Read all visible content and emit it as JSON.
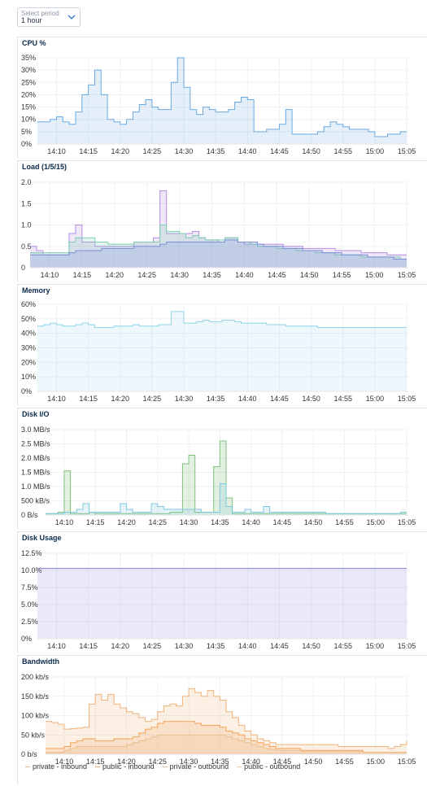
{
  "period_select": {
    "placeholder": "Select period",
    "value": "1 hour"
  },
  "x_ticks": [
    "14:10",
    "14:15",
    "14:20",
    "14:25",
    "14:30",
    "14:35",
    "14:40",
    "14:45",
    "14:50",
    "14:55",
    "15:00",
    "15:05"
  ],
  "colors": {
    "cpu": "#6aa9e0",
    "load1": "#b48ee0",
    "load5": "#7ccfb0",
    "load15": "#7a8fd9",
    "memory": "#8fd3e8",
    "disk_read": "#7fbf7a",
    "disk_write": "#7fc9e0",
    "disk_usage": "#8c86d6",
    "priv_in": "#f0b27a",
    "pub_in": "#f5a25a",
    "priv_out": "#e8c08f",
    "pub_out": "#f6c7a0"
  },
  "panels": [
    {
      "id": "cpu",
      "title": "CPU %"
    },
    {
      "id": "load",
      "title": "Load (1/5/15)"
    },
    {
      "id": "memory",
      "title": "Memory"
    },
    {
      "id": "diskio",
      "title": "Disk I/O"
    },
    {
      "id": "diskusage",
      "title": "Disk Usage"
    },
    {
      "id": "bandwidth",
      "title": "Bandwidth"
    }
  ],
  "chart_data": [
    {
      "type": "area",
      "title": "CPU %",
      "x": [
        "14:07",
        "14:08",
        "14:09",
        "14:10",
        "14:11",
        "14:12",
        "14:13",
        "14:14",
        "14:15",
        "14:16",
        "14:17",
        "14:18",
        "14:19",
        "14:20",
        "14:21",
        "14:22",
        "14:23",
        "14:24",
        "14:25",
        "14:26",
        "14:27",
        "14:28",
        "14:29",
        "14:30",
        "14:31",
        "14:32",
        "14:33",
        "14:34",
        "14:35",
        "14:36",
        "14:37",
        "14:38",
        "14:39",
        "14:40",
        "14:41",
        "14:42",
        "14:43",
        "14:44",
        "14:45",
        "14:46",
        "14:47",
        "14:48",
        "14:49",
        "14:50",
        "14:51",
        "14:52",
        "14:53",
        "14:54",
        "14:55",
        "14:56",
        "14:57",
        "14:58",
        "14:59",
        "15:00",
        "15:01",
        "15:02",
        "15:03",
        "15:04",
        "15:05"
      ],
      "series": [
        {
          "values": [
            9,
            9,
            10,
            11,
            9,
            8,
            13,
            20,
            24,
            30,
            20,
            10,
            9,
            8,
            10,
            13,
            16,
            18,
            15,
            14,
            14,
            25,
            35,
            23,
            14,
            12,
            15,
            14,
            13,
            13,
            14,
            17,
            19,
            18,
            5,
            5,
            6,
            6,
            8,
            14,
            4,
            4,
            4,
            4,
            5,
            7,
            9,
            8,
            7,
            6,
            6,
            6,
            5,
            3,
            3,
            4,
            4,
            5,
            5
          ]
        }
      ],
      "yticks": [
        "35%",
        "30%",
        "25%",
        "20%",
        "15%",
        "10%",
        "5%",
        "0%"
      ],
      "ylim": [
        0,
        35
      ]
    },
    {
      "type": "area",
      "title": "Load (1/5/15)",
      "x": [
        "14:07",
        "14:08",
        "14:09",
        "14:10",
        "14:11",
        "14:12",
        "14:13",
        "14:14",
        "14:15",
        "14:16",
        "14:17",
        "14:18",
        "14:19",
        "14:20",
        "14:21",
        "14:22",
        "14:23",
        "14:24",
        "14:25",
        "14:26",
        "14:27",
        "14:28",
        "14:29",
        "14:30",
        "14:31",
        "14:32",
        "14:33",
        "14:34",
        "14:35",
        "14:36",
        "14:37",
        "14:38",
        "14:39",
        "14:40",
        "14:41",
        "14:42",
        "14:43",
        "14:44",
        "14:45",
        "14:46",
        "14:47",
        "14:48",
        "14:49",
        "14:50",
        "14:51",
        "14:52",
        "14:53",
        "14:54",
        "14:55",
        "14:56",
        "14:57",
        "14:58",
        "14:59",
        "15:00",
        "15:01",
        "15:02",
        "15:03",
        "15:04",
        "15:05"
      ],
      "series": [
        {
          "values": [
            0.5,
            0.4,
            0.3,
            0.3,
            0.3,
            0.3,
            0.8,
            1.0,
            0.6,
            0.6,
            0.5,
            0.5,
            0.5,
            0.5,
            0.5,
            0.5,
            0.6,
            0.6,
            0.6,
            0.7,
            1.8,
            0.8,
            0.8,
            0.8,
            0.8,
            0.85,
            0.7,
            0.65,
            0.65,
            0.6,
            0.7,
            0.7,
            0.6,
            0.55,
            0.55,
            0.55,
            0.55,
            0.55,
            0.55,
            0.5,
            0.5,
            0.5,
            0.45,
            0.45,
            0.45,
            0.45,
            0.45,
            0.4,
            0.4,
            0.4,
            0.4,
            0.35,
            0.35,
            0.35,
            0.35,
            0.3,
            0.3,
            0.3,
            0.3
          ]
        },
        {
          "values": [
            0.35,
            0.35,
            0.35,
            0.35,
            0.35,
            0.35,
            0.6,
            0.7,
            0.7,
            0.7,
            0.6,
            0.6,
            0.55,
            0.55,
            0.55,
            0.55,
            0.6,
            0.6,
            0.6,
            0.6,
            1.0,
            0.85,
            0.85,
            0.8,
            0.7,
            0.75,
            0.7,
            0.65,
            0.65,
            0.65,
            0.7,
            0.7,
            0.6,
            0.6,
            0.55,
            0.5,
            0.5,
            0.5,
            0.45,
            0.45,
            0.45,
            0.4,
            0.4,
            0.4,
            0.35,
            0.35,
            0.35,
            0.3,
            0.3,
            0.3,
            0.3,
            0.25,
            0.25,
            0.25,
            0.25,
            0.25,
            0.25,
            0.2,
            0.2
          ]
        },
        {
          "values": [
            0.3,
            0.3,
            0.3,
            0.3,
            0.3,
            0.3,
            0.35,
            0.4,
            0.4,
            0.4,
            0.4,
            0.45,
            0.45,
            0.45,
            0.45,
            0.45,
            0.5,
            0.5,
            0.5,
            0.5,
            0.55,
            0.6,
            0.6,
            0.6,
            0.6,
            0.6,
            0.6,
            0.6,
            0.6,
            0.6,
            0.65,
            0.65,
            0.6,
            0.6,
            0.6,
            0.55,
            0.5,
            0.5,
            0.5,
            0.45,
            0.45,
            0.45,
            0.4,
            0.4,
            0.4,
            0.35,
            0.35,
            0.35,
            0.3,
            0.3,
            0.3,
            0.3,
            0.25,
            0.25,
            0.25,
            0.25,
            0.2,
            0.2,
            0.2
          ]
        }
      ],
      "yticks": [
        "2.0",
        "1.5",
        "1.0",
        "0.5",
        "0"
      ],
      "ylim": [
        0,
        2
      ]
    },
    {
      "type": "area",
      "title": "Memory",
      "x": [
        "14:07",
        "14:08",
        "14:09",
        "14:10",
        "14:11",
        "14:12",
        "14:13",
        "14:14",
        "14:15",
        "14:16",
        "14:17",
        "14:18",
        "14:19",
        "14:20",
        "14:21",
        "14:22",
        "14:23",
        "14:24",
        "14:25",
        "14:26",
        "14:27",
        "14:28",
        "14:29",
        "14:30",
        "14:31",
        "14:32",
        "14:33",
        "14:34",
        "14:35",
        "14:36",
        "14:37",
        "14:38",
        "14:39",
        "14:40",
        "14:41",
        "14:42",
        "14:43",
        "14:44",
        "14:45",
        "14:46",
        "14:47",
        "14:48",
        "14:49",
        "14:50",
        "14:51",
        "14:52",
        "14:53",
        "14:54",
        "14:55",
        "14:56",
        "14:57",
        "14:58",
        "14:59",
        "15:00",
        "15:01",
        "15:02",
        "15:03",
        "15:04",
        "15:05"
      ],
      "series": [
        {
          "values": [
            45,
            46,
            47,
            46,
            45,
            45,
            46,
            47,
            46,
            44,
            44,
            44,
            45,
            45,
            45,
            46,
            45,
            45,
            45,
            46,
            46,
            55,
            55,
            47,
            47,
            48,
            49,
            48,
            48,
            49,
            49,
            48,
            47,
            47,
            47,
            47,
            46,
            46,
            46,
            45,
            45,
            45,
            45,
            45,
            44,
            44,
            44,
            44,
            44,
            44,
            44,
            44,
            44,
            44,
            44,
            44,
            44,
            44,
            44
          ]
        }
      ],
      "yticks": [
        "60%",
        "50%",
        "40%",
        "30%",
        "20%",
        "10%",
        "0%"
      ],
      "ylim": [
        0,
        60
      ]
    },
    {
      "type": "area",
      "title": "Disk I/O",
      "x": [
        "14:07",
        "14:08",
        "14:09",
        "14:10",
        "14:11",
        "14:12",
        "14:13",
        "14:14",
        "14:15",
        "14:16",
        "14:17",
        "14:18",
        "14:19",
        "14:20",
        "14:21",
        "14:22",
        "14:23",
        "14:24",
        "14:25",
        "14:26",
        "14:27",
        "14:28",
        "14:29",
        "14:30",
        "14:31",
        "14:32",
        "14:33",
        "14:34",
        "14:35",
        "14:36",
        "14:37",
        "14:38",
        "14:39",
        "14:40",
        "14:41",
        "14:42",
        "14:43",
        "14:44",
        "14:45",
        "14:46",
        "14:47",
        "14:48",
        "14:49",
        "14:50",
        "14:51",
        "14:52",
        "14:53",
        "14:54",
        "14:55",
        "14:56",
        "14:57",
        "14:58",
        "14:59",
        "15:00",
        "15:01",
        "15:02",
        "15:03",
        "15:04",
        "15:05"
      ],
      "series": [
        {
          "values": [
            0.05,
            0.05,
            0.1,
            1.55,
            0.05,
            0.05,
            0.05,
            0.1,
            0.05,
            0.05,
            0.05,
            0.05,
            0.05,
            0.05,
            0.05,
            0.05,
            0.05,
            0.05,
            0.05,
            0.05,
            0.1,
            0.1,
            1.8,
            2.1,
            0.1,
            0.1,
            0.1,
            1.7,
            2.6,
            0.6,
            0.05,
            0.05,
            0.05,
            0.05,
            0.05,
            0.05,
            0.05,
            0.05,
            0.05,
            0.05,
            0.05,
            0.05,
            0.05,
            0.05,
            0.05,
            0.05,
            0.05,
            0.05,
            0.05,
            0.05,
            0.05,
            0.05,
            0.05,
            0.05,
            0.05,
            0.05,
            0.05,
            0.05,
            0.05
          ]
        },
        {
          "values": [
            0.05,
            0.05,
            0.05,
            0.1,
            0.1,
            0.2,
            0.4,
            0.1,
            0.1,
            0.1,
            0.1,
            0.1,
            0.4,
            0.2,
            0.1,
            0.1,
            0.1,
            0.4,
            0.3,
            0.2,
            0.2,
            0.2,
            0.2,
            0.2,
            0.2,
            0.1,
            0.1,
            0.1,
            1.1,
            0.3,
            0.1,
            0.1,
            0.2,
            0.1,
            0.1,
            0.3,
            0.1,
            0.1,
            0.1,
            0.1,
            0.1,
            0.1,
            0.1,
            0.1,
            0.1,
            0.05,
            0.05,
            0.05,
            0.05,
            0.05,
            0.05,
            0.05,
            0.05,
            0.05,
            0.05,
            0.05,
            0.05,
            0.1,
            0.1
          ]
        }
      ],
      "yticks": [
        "3.0 MB/s",
        "2.5 MB/s",
        "2.0 MB/s",
        "1.5 MB/s",
        "1.0 MB/s",
        "500 kB/s",
        "0 B/s"
      ],
      "ylim": [
        0,
        3
      ]
    },
    {
      "type": "area",
      "title": "Disk Usage",
      "x": [
        "14:07",
        "15:05"
      ],
      "series": [
        {
          "values": [
            10.3,
            10.3
          ]
        }
      ],
      "yticks": [
        "12.5%",
        "10.0%",
        "7.5%",
        "5.0%",
        "2.5%",
        "0%"
      ],
      "ylim": [
        0,
        12.5
      ]
    },
    {
      "type": "area",
      "title": "Bandwidth",
      "x": [
        "14:07",
        "14:08",
        "14:09",
        "14:10",
        "14:11",
        "14:12",
        "14:13",
        "14:14",
        "14:15",
        "14:16",
        "14:17",
        "14:18",
        "14:19",
        "14:20",
        "14:21",
        "14:22",
        "14:23",
        "14:24",
        "14:25",
        "14:26",
        "14:27",
        "14:28",
        "14:29",
        "14:30",
        "14:31",
        "14:32",
        "14:33",
        "14:34",
        "14:35",
        "14:36",
        "14:37",
        "14:38",
        "14:39",
        "14:40",
        "14:41",
        "14:42",
        "14:43",
        "14:44",
        "14:45",
        "14:46",
        "14:47",
        "14:48",
        "14:49",
        "14:50",
        "14:51",
        "14:52",
        "14:53",
        "14:54",
        "14:55",
        "14:56",
        "14:57",
        "14:58",
        "14:59",
        "15:00",
        "15:01",
        "15:02",
        "15:03",
        "15:04",
        "15:05"
      ],
      "series": [
        {
          "name": "private - inbound",
          "values": [
            85,
            82,
            78,
            65,
            66,
            68,
            70,
            130,
            155,
            140,
            155,
            130,
            120,
            110,
            105,
            95,
            85,
            90,
            110,
            125,
            130,
            125,
            150,
            170,
            160,
            150,
            165,
            150,
            140,
            110,
            95,
            75,
            60,
            50,
            40,
            35,
            30,
            25,
            25,
            25,
            25,
            25,
            25,
            25,
            25,
            25,
            25,
            20,
            20,
            20,
            20,
            20,
            20,
            20,
            20,
            15,
            20,
            25,
            35
          ]
        },
        {
          "name": "public - inbound",
          "values": [
            15,
            15,
            15,
            20,
            30,
            35,
            40,
            40,
            35,
            35,
            35,
            40,
            40,
            40,
            45,
            55,
            65,
            70,
            80,
            85,
            85,
            85,
            85,
            85,
            80,
            75,
            75,
            75,
            70,
            60,
            55,
            50,
            40,
            35,
            30,
            25,
            20,
            15,
            15,
            15,
            15,
            10,
            10,
            10,
            10,
            10,
            10,
            10,
            10,
            10,
            10,
            5,
            5,
            5,
            5,
            5,
            5,
            5,
            5
          ]
        },
        {
          "name": "private - outbound",
          "values": [
            5,
            5,
            5,
            10,
            15,
            20,
            20,
            20,
            20,
            20,
            20,
            20,
            20,
            25,
            30,
            35,
            40,
            45,
            50,
            50,
            50,
            50,
            50,
            50,
            50,
            50,
            50,
            50,
            50,
            45,
            40,
            35,
            30,
            25,
            20,
            15,
            12,
            10,
            10,
            10,
            10,
            8,
            8,
            8,
            8,
            8,
            8,
            8,
            8,
            8,
            8,
            5,
            5,
            5,
            5,
            5,
            5,
            5,
            5
          ]
        },
        {
          "name": "public - outbound",
          "values": [
            3,
            3,
            3,
            3,
            3,
            3,
            3,
            3,
            3,
            3,
            3,
            3,
            3,
            3,
            3,
            3,
            3,
            3,
            3,
            3,
            3,
            3,
            3,
            3,
            3,
            3,
            3,
            3,
            3,
            3,
            3,
            3,
            3,
            3,
            3,
            3,
            3,
            3,
            3,
            3,
            3,
            3,
            3,
            3,
            3,
            3,
            3,
            3,
            3,
            3,
            3,
            3,
            3,
            3,
            3,
            3,
            3,
            3,
            3
          ]
        }
      ],
      "yticks": [
        "200 kb/s",
        "150 kb/s",
        "100 kb/s",
        "50 kb/s",
        "0 b/s"
      ],
      "ylim": [
        0,
        200
      ],
      "legend": "bottom-left"
    }
  ]
}
